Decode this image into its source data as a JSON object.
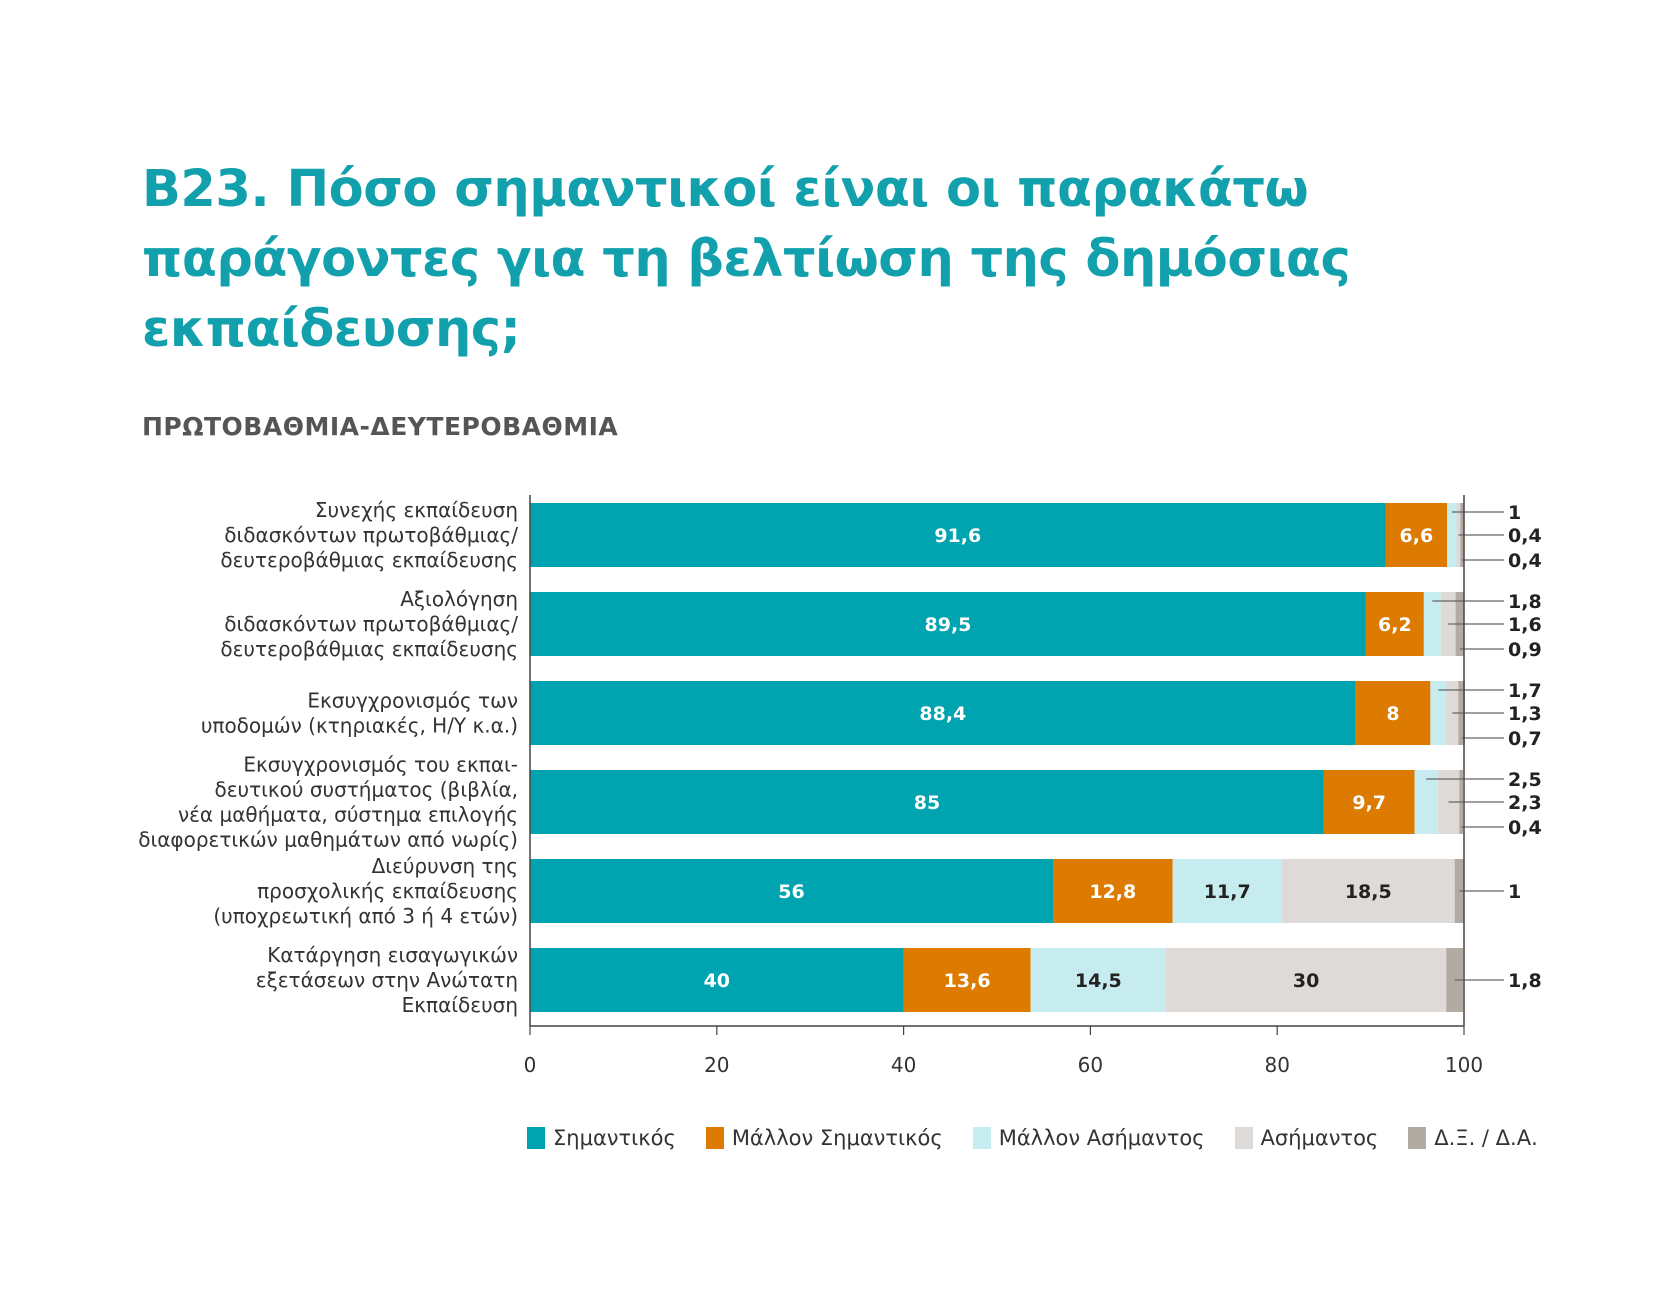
{
  "title": {
    "line1": "Β23. Πόσο σημαντικοί είναι οι παρακάτω",
    "line2": "παράγοντες για τη βελτίωση της δημόσιας",
    "line3": "εκπαίδευσης;"
  },
  "subtitle": "ΠΡΩΤΟΒΑΘΜΙΑ-ΔΕΥΤΕΡΟΒΑΘΜΙΑ",
  "colors": {
    "title": "#12a0ad",
    "series": [
      "#00a3b0",
      "#dd7a00",
      "#c7ecf0",
      "#dedad7",
      "#b2aba4"
    ],
    "axis": "#444444",
    "text": "#333333"
  },
  "chart_data": {
    "type": "bar",
    "orientation": "horizontal",
    "stacked": true,
    "categories": [
      [
        "Συνεχής εκπαίδευση",
        "διδασκόντων πρωτοβάθμιας/",
        "δευτεροβάθμιας εκπαίδευσης"
      ],
      [
        "Αξιολόγηση",
        "διδασκόντων πρωτοβάθμιας/",
        "δευτεροβάθμιας εκπαίδευσης"
      ],
      [
        "Εκσυγχρονισμός των",
        "υποδομών (κτηριακές, Η/Υ κ.α.)"
      ],
      [
        "Εκσυγχρονισμός του εκπαι-",
        "δευτικού συστήματος (βιβλία,",
        "νέα μαθήματα, σύστημα επιλογής",
        "διαφορετικών μαθημάτων από νωρίς)"
      ],
      [
        "Διεύρυνση της",
        "προσχολικής εκπαίδευσης",
        "(υποχρεωτική από 3 ή 4 ετών)"
      ],
      [
        "Κατάργηση εισαγωγικών",
        "εξετάσεων στην Ανώτατη",
        "Εκπαίδευση"
      ]
    ],
    "series": [
      {
        "name": "Σημαντικός",
        "values": [
          91.6,
          89.5,
          88.4,
          85,
          56,
          40
        ]
      },
      {
        "name": "Μάλλον Σημαντικός",
        "values": [
          6.6,
          6.2,
          8,
          9.7,
          12.8,
          13.6
        ]
      },
      {
        "name": "Μάλλον Ασήμαντος",
        "values": [
          1,
          1.8,
          1.7,
          2.5,
          11.7,
          14.5
        ]
      },
      {
        "name": "Ασήμαντος",
        "values": [
          0.4,
          1.6,
          1.3,
          2.3,
          18.5,
          30
        ]
      },
      {
        "name": "Δ.Ξ. / Δ.Α.",
        "values": [
          0.4,
          0.9,
          0.7,
          0.4,
          1,
          1.8
        ]
      }
    ],
    "value_labels": [
      [
        "91,6",
        "6,6",
        "1",
        "0,4",
        "0,4"
      ],
      [
        "89,5",
        "6,2",
        "1,8",
        "1,6",
        "0,9"
      ],
      [
        "88,4",
        "8",
        "1,7",
        "1,3",
        "0,7"
      ],
      [
        "85",
        "9,7",
        "2,5",
        "2,3",
        "0,4"
      ],
      [
        "56",
        "12,8",
        "11,7",
        "18,5",
        "1"
      ],
      [
        "40",
        "13,6",
        "14,5",
        "30",
        "1,8"
      ]
    ],
    "xlim": [
      0,
      100
    ],
    "xticks": [
      0,
      20,
      40,
      60,
      80,
      100
    ],
    "xtick_labels": [
      "0",
      "20",
      "40",
      "60",
      "80",
      "100"
    ],
    "legend_position": "bottom",
    "grid": false
  }
}
